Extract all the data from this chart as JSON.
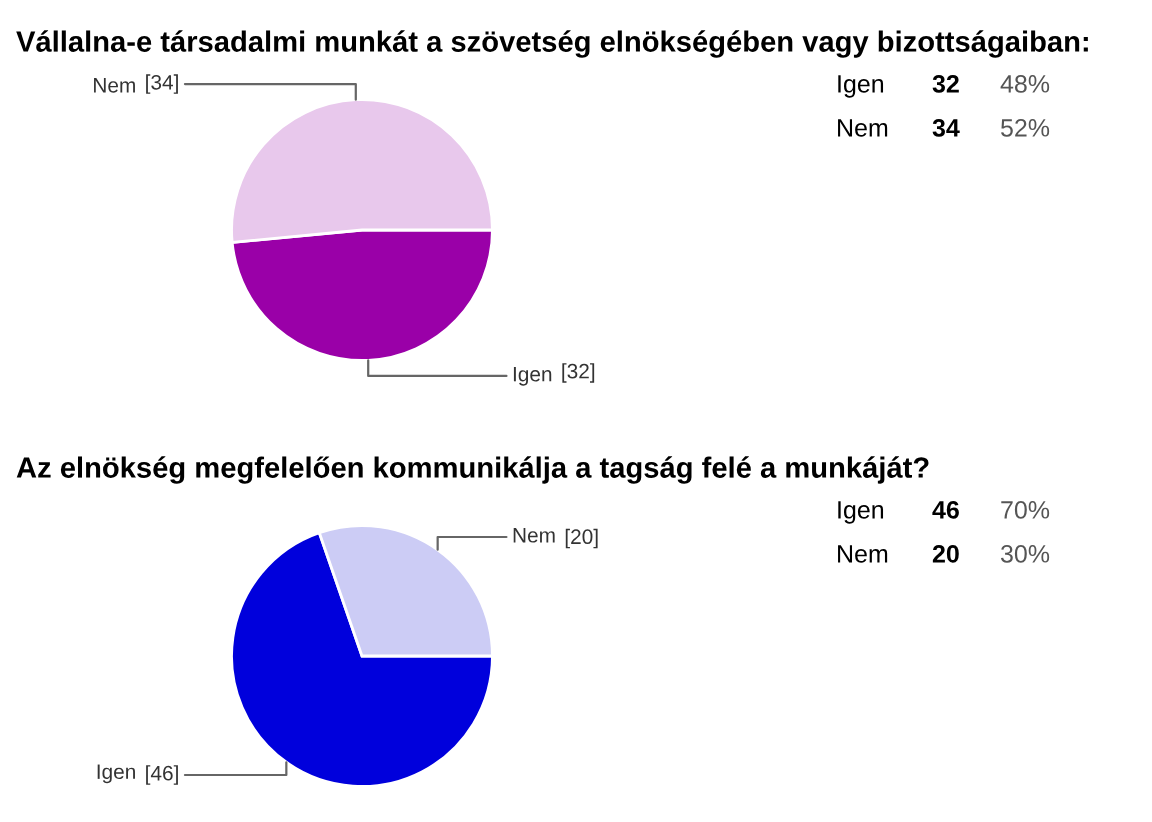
{
  "chart_data": [
    {
      "type": "pie",
      "title": "Vállalna-e társadalmi munkát a szövetség elnökségében vagy bizottságaiban:",
      "categories": [
        "Igen",
        "Nem"
      ],
      "values": [
        32,
        34
      ],
      "colors": [
        "#9a00a8",
        "#e8c8ec"
      ],
      "value_labels": [
        "[32]",
        "[34]"
      ],
      "annotations": [
        "Igen",
        "32",
        "48%",
        "Nem",
        "34",
        "52%"
      ]
    },
    {
      "type": "pie",
      "title": "Az elnökség megfelelően kommunikálja a tagság felé a munkáját?",
      "categories": [
        "Igen",
        "Nem"
      ],
      "values": [
        46,
        20
      ],
      "colors": [
        "#0000dc",
        "#ccccf5"
      ],
      "value_labels": [
        "[46]",
        "[20]"
      ],
      "annotations": [
        "Igen",
        "46",
        "70%",
        "Nem",
        "20",
        "30%"
      ]
    }
  ]
}
